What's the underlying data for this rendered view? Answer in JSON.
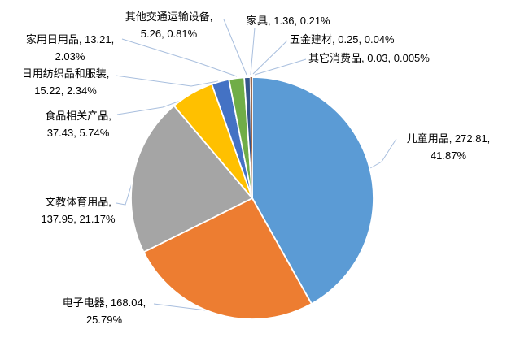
{
  "chart_data": {
    "type": "pie",
    "title": "",
    "legend_position": "none",
    "data_label_format": "category, value, percent",
    "start_angle_deg": 0,
    "direction": "clockwise",
    "background": "#FFFFFF",
    "slice_border_color": "#FFFFFF",
    "leader_line_color": "#A9BFDE",
    "categories": [
      "儿童用品",
      "电子电器",
      "文教体育用品",
      "食品相关产品",
      "日用纺织品和服装",
      "家用日用品",
      "其他交通运输设备",
      "家具",
      "五金建材",
      "其它消费品"
    ],
    "values": [
      272.81,
      168.04,
      137.95,
      37.43,
      15.22,
      13.21,
      5.26,
      1.36,
      0.25,
      0.03
    ],
    "percent_labels": [
      "41.87%",
      "25.79%",
      "21.17%",
      "5.74%",
      "2.34%",
      "2.03%",
      "0.81%",
      "0.21%",
      "0.04%",
      "0.005%"
    ],
    "colors": [
      "#5B9BD5",
      "#ED7D31",
      "#A5A5A5",
      "#FFC000",
      "#4472C4",
      "#70AD47",
      "#34558B",
      "#A8542B",
      "#595959",
      "#997300"
    ],
    "labels": [
      {
        "line1": "儿童用品, 272.81,",
        "line2": "41.87%"
      },
      {
        "line1": "电子电器, 168.04,",
        "line2": "25.79%"
      },
      {
        "line1": "文教体育用品,",
        "line2": "137.95, 21.17%"
      },
      {
        "line1": "食品相关产品,",
        "line2": "37.43, 5.74%"
      },
      {
        "line1": "日用纺织品和服装,",
        "line2": "15.22, 2.34%"
      },
      {
        "line1": "家用日用品, 13.21,",
        "line2": "2.03%"
      },
      {
        "line1": "其他交通运输设备,",
        "line2": "5.26, 0.81%"
      },
      {
        "line1": "家具, 1.36, 0.21%",
        "line2": ""
      },
      {
        "line1": "五金建材, 0.25, 0.04%",
        "line2": ""
      },
      {
        "line1": "其它消费品, 0.03, 0.005%",
        "line2": ""
      }
    ]
  }
}
